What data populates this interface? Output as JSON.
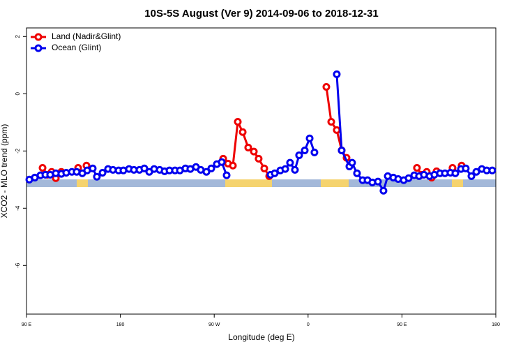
{
  "chart_data": {
    "type": "line",
    "title": "10S-5S August (Ver 9)   2014-09-06 to 2018-12-31",
    "x_label": "Longitude (deg E)",
    "y_label": "XCO2 - MLO trend (ppm)",
    "xlim": [
      90,
      540
    ],
    "xticks": [
      {
        "value": 90,
        "label": "90 E"
      },
      {
        "value": 180,
        "label": "180"
      },
      {
        "value": 270,
        "label": "90 W"
      },
      {
        "value": 360,
        "label": "0"
      },
      {
        "value": 450,
        "label": "90 E"
      },
      {
        "value": 540,
        "label": "180"
      }
    ],
    "ylim": [
      -7.7,
      2.3
    ],
    "yticks": [
      2,
      0,
      -2,
      -4,
      -6
    ],
    "legend": "top-left",
    "series": [
      {
        "name": "Land (Nadir&Glint)",
        "color": "#ee0000",
        "x": [
          105.4,
          110.1,
          114.1,
          118.1,
          123.4,
          null,
          139.5,
          null,
          147.5,
          null,
          278.6,
          283.2,
          287.9,
          292.6,
          297.3,
          302.6,
          308.0,
          312.6,
          318.0,
          322.7,
          null,
          377.5,
          382.2,
          387.5,
          392.2,
          396.9,
          null,
          464.4,
          469.1,
          473.8,
          478.5,
          483.2,
          null,
          498.5,
          null,
          507.2
        ],
        "values": [
          -2.59,
          -2.83,
          -2.73,
          -2.95,
          -2.73,
          null,
          -2.59,
          null,
          -2.51,
          null,
          -2.27,
          -2.44,
          -2.51,
          -0.98,
          -1.34,
          -1.88,
          -2.02,
          -2.27,
          -2.61,
          -2.88,
          null,
          0.24,
          -0.98,
          -1.27,
          -1.98,
          -2.24,
          null,
          -2.59,
          -2.83,
          -2.73,
          -2.93,
          -2.71,
          null,
          -2.59,
          null,
          -2.51
        ]
      },
      {
        "name": "Ocean (Glint)",
        "color": "#0000ee",
        "x": [
          92.7,
          98.0,
          103.4,
          108.1,
          112.7,
          118.1,
          123.4,
          128.1,
          133.5,
          138.1,
          143.5,
          148.2,
          153.5,
          157.5,
          162.9,
          168.2,
          172.9,
          178.3,
          182.9,
          188.3,
          193.0,
          198.3,
          203.0,
          207.7,
          212.4,
          217.7,
          222.4,
          227.1,
          232.4,
          237.1,
          242.4,
          247.1,
          252.5,
          257.1,
          262.5,
          267.2,
          272.5,
          277.2,
          281.9,
          null,
          324.0,
          328.0,
          333.4,
          338.1,
          342.7,
          347.4,
          351.4,
          356.8,
          361.5,
          366.1,
          null,
          387.5,
          392.2,
          399.6,
          402.2,
          406.9,
          412.3,
          417.0,
          421.6,
          427.0,
          432.3,
          436.4,
          441.7,
          446.4,
          451.7,
          456.4,
          461.8,
          466.4,
          471.1,
          476.5,
          481.1,
          486.5,
          491.2,
          496.5,
          501.2,
          506.6,
          511.2,
          516.6,
          521.3,
          526.6,
          531.3,
          536.6
        ],
        "values": [
          -3.0,
          -2.93,
          -2.85,
          -2.83,
          -2.83,
          -2.78,
          -2.8,
          -2.76,
          -2.73,
          -2.73,
          -2.78,
          -2.68,
          -2.61,
          -2.9,
          -2.76,
          -2.63,
          -2.66,
          -2.68,
          -2.68,
          -2.63,
          -2.66,
          -2.66,
          -2.61,
          -2.73,
          -2.63,
          -2.66,
          -2.71,
          -2.68,
          -2.68,
          -2.68,
          -2.61,
          -2.63,
          -2.56,
          -2.66,
          -2.73,
          -2.61,
          -2.46,
          -2.39,
          -2.85,
          null,
          -2.83,
          -2.78,
          -2.68,
          -2.63,
          -2.41,
          -2.66,
          -2.15,
          -1.98,
          -1.56,
          -2.05,
          null,
          0.68,
          -1.98,
          -2.54,
          -2.41,
          -2.78,
          -3.02,
          -3.02,
          -3.1,
          -3.07,
          -3.39,
          -2.88,
          -2.93,
          -2.98,
          -3.02,
          -2.95,
          -2.85,
          -2.88,
          -2.83,
          -2.88,
          -2.83,
          -2.78,
          -2.78,
          -2.76,
          -2.78,
          -2.63,
          -2.61,
          -2.88,
          -2.73,
          -2.63,
          -2.68,
          -2.68
        ]
      }
    ]
  }
}
